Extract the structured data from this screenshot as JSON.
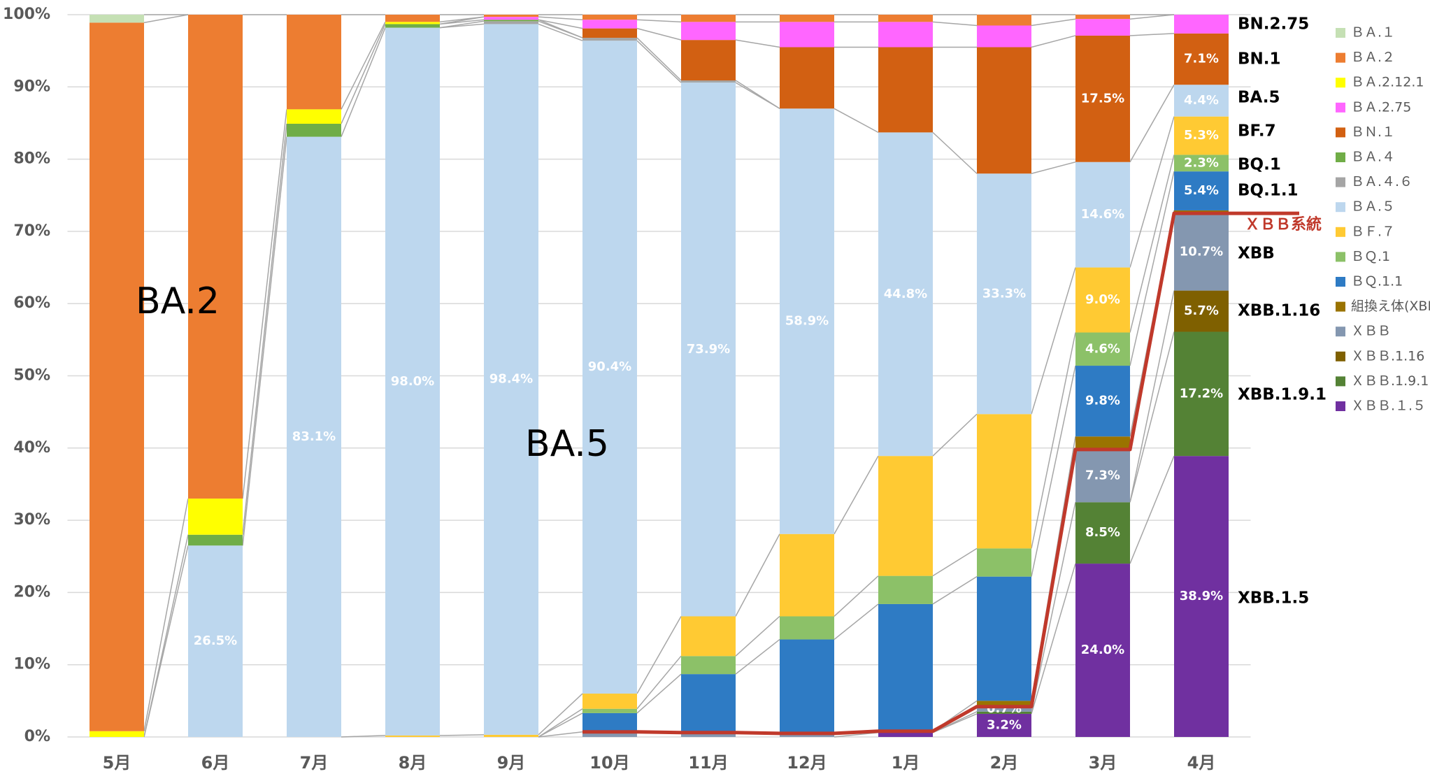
{
  "chart_data": {
    "type": "stacked_bar",
    "categories": [
      "5月",
      "6月",
      "7月",
      "8月",
      "9月",
      "10月",
      "11月",
      "12月",
      "1月",
      "2月",
      "3月",
      "4月"
    ],
    "series": [
      {
        "name": "ＢＡ.１",
        "color": "#c5e0b4",
        "values": [
          1.1,
          0,
          0,
          0,
          0,
          0,
          0,
          0,
          0,
          0,
          0,
          0
        ]
      },
      {
        "name": "ＢＡ.２",
        "color": "#ed7d31",
        "values": [
          98.1,
          67,
          13.1,
          1.0,
          0.3,
          0.7,
          1.0,
          1.0,
          1.0,
          1.5,
          0.6,
          0
        ]
      },
      {
        "name": "ＢＡ.2.12.1",
        "color": "#ffff00",
        "values": [
          0.8,
          5,
          2.0,
          0.3,
          0,
          0,
          0,
          0,
          0,
          0,
          0,
          0
        ]
      },
      {
        "name": "ＢＡ.2.75",
        "color": "#ff66ff",
        "values": [
          0,
          0,
          0,
          0,
          0.4,
          1.2,
          2.5,
          3.5,
          3.5,
          3.0,
          2.3,
          2.6
        ]
      },
      {
        "name": "ＢＮ.１",
        "color": "#d26012",
        "values": [
          0,
          0,
          0,
          0,
          0,
          1.3,
          5.6,
          8.5,
          11.8,
          17.5,
          17.5,
          7.1
        ],
        "value_labels": [
          null,
          null,
          null,
          null,
          null,
          null,
          null,
          null,
          null,
          null,
          "17.5%",
          "7.1%"
        ]
      },
      {
        "name": "ＢＡ.４",
        "color": "#70ad47",
        "values": [
          0,
          1.5,
          1.8,
          0.5,
          0.2,
          0,
          0,
          0,
          0,
          0,
          0,
          0
        ]
      },
      {
        "name": "ＢＡ.４.６",
        "color": "#a5a5a5",
        "values": [
          0,
          0,
          0,
          0,
          0.4,
          0.4,
          0.3,
          0,
          0,
          0,
          0,
          0
        ]
      },
      {
        "name": "ＢＡ.５",
        "color": "#bdd7ee",
        "values": [
          0,
          26.5,
          83.1,
          98.0,
          98.4,
          90.4,
          73.9,
          58.9,
          44.8,
          33.3,
          14.6,
          4.4
        ],
        "value_labels": [
          null,
          "26.5%",
          "83.1%",
          "98.0%",
          "98.4%",
          "90.4%",
          "73.9%",
          "58.9%",
          "44.8%",
          "33.3%",
          "14.6%",
          "4.4%"
        ]
      },
      {
        "name": "ＢＦ.７",
        "color": "#ffca33",
        "values": [
          0,
          0,
          0,
          0.2,
          0.3,
          2.1,
          5.5,
          11.4,
          16.6,
          18.6,
          9.0,
          5.3
        ],
        "value_labels": [
          null,
          null,
          null,
          null,
          null,
          null,
          null,
          null,
          null,
          null,
          "9.0%",
          "5.3%"
        ]
      },
      {
        "name": "ＢＱ.1",
        "color": "#8cc168",
        "values": [
          0,
          0,
          0,
          0,
          0,
          0.6,
          2.5,
          3.2,
          3.9,
          3.9,
          4.6,
          2.3
        ],
        "value_labels": [
          null,
          null,
          null,
          null,
          null,
          null,
          null,
          null,
          null,
          null,
          "4.6%",
          "2.3%"
        ]
      },
      {
        "name": "ＢＱ.1.1",
        "color": "#2e7bc4",
        "values": [
          0,
          0,
          0,
          0,
          0,
          2.6,
          8.1,
          13,
          17.6,
          17.2,
          9.8,
          5.4
        ],
        "value_labels": [
          null,
          null,
          null,
          null,
          null,
          null,
          null,
          null,
          null,
          null,
          "9.8%",
          "5.4%"
        ]
      },
      {
        "name": "組換え体(XBB以外)",
        "color": "#9a7300",
        "values": [
          0,
          0,
          0,
          0,
          0,
          0,
          0,
          0,
          0,
          0.8,
          1.8,
          0.4
        ]
      },
      {
        "name": "ＸＢＢ",
        "color": "#8497b0",
        "values": [
          0,
          0,
          0,
          0,
          0,
          0.7,
          0.6,
          0.5,
          0.2,
          0.7,
          7.3,
          10.7
        ],
        "value_labels": [
          null,
          null,
          null,
          null,
          null,
          null,
          null,
          null,
          null,
          "0.7%",
          "7.3%",
          "10.7%"
        ]
      },
      {
        "name": "ＸＢＢ.1.16",
        "color": "#7f6000",
        "values": [
          0,
          0,
          0,
          0,
          0,
          0,
          0,
          0,
          0,
          0,
          0,
          5.7
        ],
        "value_labels": [
          null,
          null,
          null,
          null,
          null,
          null,
          null,
          null,
          null,
          null,
          null,
          "5.7%"
        ]
      },
      {
        "name": "ＸＢＢ.1.9.1",
        "color": "#548235",
        "values": [
          0,
          0,
          0,
          0,
          0,
          0,
          0,
          0,
          0,
          0.3,
          8.5,
          17.2
        ],
        "value_labels": [
          null,
          null,
          null,
          null,
          null,
          null,
          null,
          null,
          null,
          null,
          "8.5%",
          "17.2%"
        ]
      },
      {
        "name": "ＸＢＢ.１.５",
        "color": "#7030a0",
        "values": [
          0,
          0,
          0,
          0,
          0,
          0,
          0,
          0,
          0.6,
          3.2,
          24.0,
          38.9
        ],
        "value_labels": [
          null,
          null,
          null,
          null,
          null,
          null,
          null,
          null,
          null,
          "3.2%",
          "24.0%",
          "38.9%"
        ]
      }
    ],
    "ylim": [
      0,
      100
    ],
    "yticks": [
      {
        "value": 0,
        "label": "0%"
      },
      {
        "value": 10,
        "label": "10%"
      },
      {
        "value": 20,
        "label": "20%"
      },
      {
        "value": 30,
        "label": "30%"
      },
      {
        "value": 40,
        "label": "40%"
      },
      {
        "value": 50,
        "label": "50%"
      },
      {
        "value": 60,
        "label": "60%"
      },
      {
        "value": 70,
        "label": "70%"
      },
      {
        "value": 80,
        "label": "80%"
      },
      {
        "value": 90,
        "label": "90%"
      },
      {
        "value": 100,
        "label": "100%"
      }
    ],
    "grid": true,
    "legend": "right",
    "annotations": [
      "BA.2",
      "BA.5"
    ],
    "right_labels": [
      "BN.2.75",
      "BN.1",
      "BA.5",
      "BF.7",
      "BQ.1",
      "BQ.1.1",
      "ＸＢＢ系統",
      "XBB",
      "XBB.1.16",
      "XBB.1.9.1",
      "XBB.1.5"
    ],
    "lineage_color": "#c0392b"
  }
}
